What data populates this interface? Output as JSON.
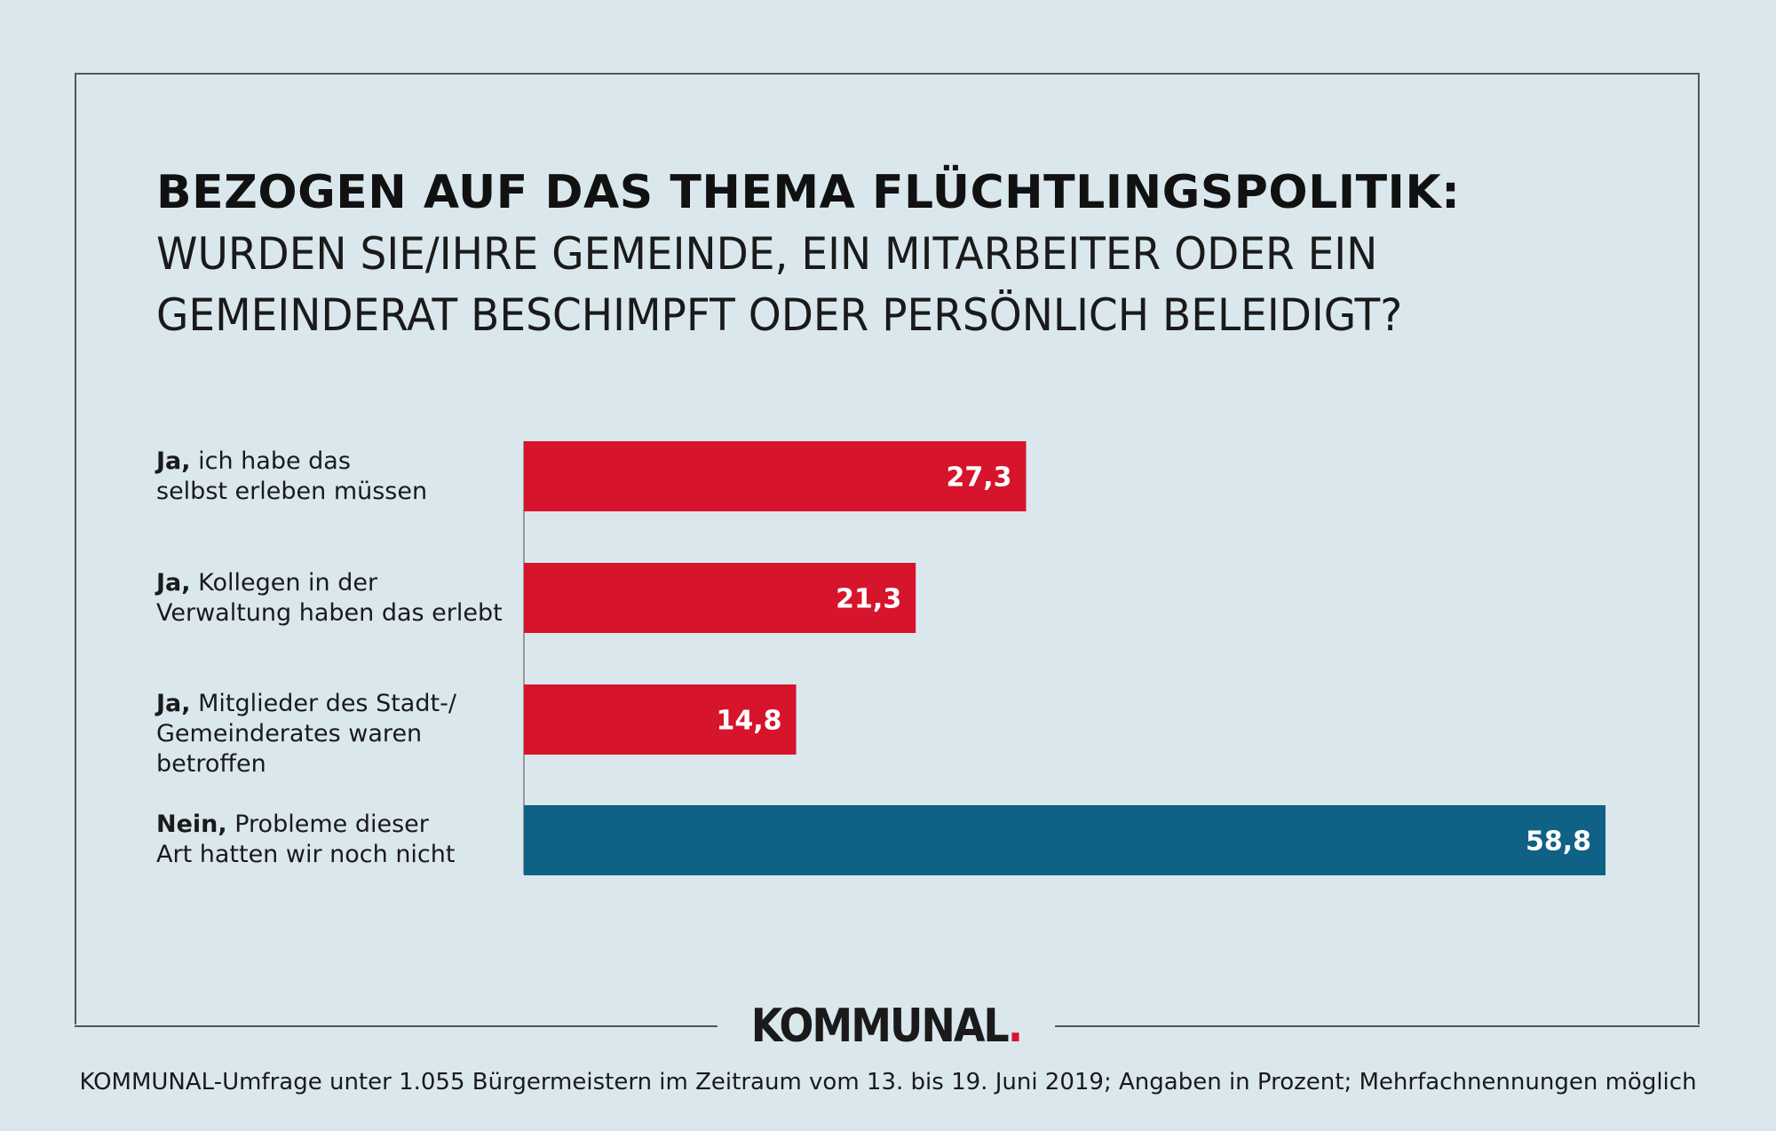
{
  "title": {
    "bold": "BEZOGEN AUF DAS THEMA FLÜCHTLINGSPOLITIK:",
    "line1": "WURDEN SIE/IHRE GEMEINDE, EIN MITARBEITER ODER EIN",
    "line2": "GEMEINDERAT BESCHIMPFT ODER PERSÖNLICH BELEIDIGT?"
  },
  "rows": [
    {
      "bold": "Ja,",
      "rest1": " ich habe das",
      "rest2": "selbst erleben müssen"
    },
    {
      "bold": "Ja,",
      "rest1": " Kollegen in der",
      "rest2": "Verwaltung haben das erlebt"
    },
    {
      "bold": "Ja,",
      "rest1": " Mitglieder des Stadt-/",
      "rest2": "Gemeinderates waren betroffen"
    },
    {
      "bold": "Nein,",
      "rest1": " Probleme dieser",
      "rest2": "Art hatten wir noch nicht"
    }
  ],
  "chart_data": {
    "type": "bar",
    "orientation": "horizontal",
    "categories": [
      "Ja, ich habe das selbst erleben müssen",
      "Ja, Kollegen in der Verwaltung haben das erlebt",
      "Ja, Mitglieder des Stadt-/Gemeinderates waren betroffen",
      "Nein, Probleme dieser Art hatten wir noch nicht"
    ],
    "values": [
      27.3,
      21.3,
      14.8,
      58.8
    ],
    "value_labels": [
      "27,3",
      "21,3",
      "14,8",
      "58,8"
    ],
    "colors": [
      "#d6142b",
      "#d6142b",
      "#d6142b",
      "#0f6185"
    ],
    "xlim": [
      0,
      60
    ],
    "unit": "Prozent"
  },
  "logo": {
    "text": "KOMMUNAL",
    "dot": ".",
    "dot_color": "#d6142b"
  },
  "footnote": "KOMMUNAL-Umfrage unter 1.055 Bürgermeistern im Zeitraum vom 13. bis 19. Juni 2019; Angaben in Prozent; Mehrfachnennungen möglich"
}
